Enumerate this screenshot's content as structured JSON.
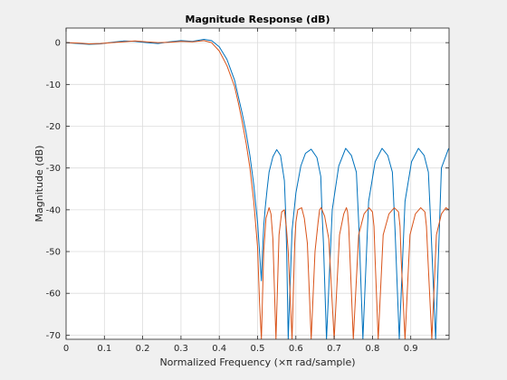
{
  "chart_data": {
    "type": "line",
    "title": "Magnitude Response (dB)",
    "xlabel": "Normalized Frequency (×π rad/sample)",
    "ylabel": "Magnitude (dB)",
    "xlim": [
      0,
      1
    ],
    "ylim": [
      -71,
      3.5
    ],
    "xticks": [
      0,
      0.1,
      0.2,
      0.3,
      0.4,
      0.5,
      0.6,
      0.7,
      0.8,
      0.9
    ],
    "xtick_labels": [
      "0",
      "0.1",
      "0.2",
      "0.3",
      "0.4",
      "0.5",
      "0.6",
      "0.7",
      "0.8",
      "0.9"
    ],
    "yticks": [
      0,
      -10,
      -20,
      -30,
      -40,
      -50,
      -60,
      -70
    ],
    "ytick_labels": [
      "0",
      "-10",
      "-20",
      "-30",
      "-40",
      "-50",
      "-60",
      "-70"
    ],
    "grid": true,
    "series": [
      {
        "color": "#0072bd",
        "x": [
          0,
          0.03,
          0.06,
          0.09,
          0.12,
          0.15,
          0.18,
          0.21,
          0.24,
          0.27,
          0.3,
          0.33,
          0.36,
          0.38,
          0.4,
          0.42,
          0.44,
          0.45,
          0.46,
          0.47,
          0.48,
          0.49,
          0.5,
          0.505,
          0.51,
          0.513,
          0.516,
          0.52,
          0.525,
          0.53,
          0.54,
          0.55,
          0.56,
          0.57,
          0.573,
          0.576,
          0.58,
          0.59,
          0.6,
          0.613,
          0.625,
          0.64,
          0.655,
          0.665,
          0.668,
          0.672,
          0.68,
          0.695,
          0.712,
          0.73,
          0.745,
          0.758,
          0.761,
          0.765,
          0.775,
          0.79,
          0.807,
          0.825,
          0.84,
          0.852,
          0.855,
          0.859,
          0.87,
          0.885,
          0.902,
          0.92,
          0.935,
          0.946,
          0.949,
          0.953,
          0.965,
          0.98,
          0.999
        ],
        "y": [
          0,
          -0.2,
          -0.4,
          -0.3,
          0.1,
          0.4,
          0.3,
          0,
          -0.2,
          0.2,
          0.5,
          0.3,
          0.8,
          0.5,
          -1.0,
          -4.0,
          -9.0,
          -13.0,
          -17.0,
          -21.5,
          -27.0,
          -34.0,
          -43.0,
          -50.0,
          -57.0,
          -50.0,
          -44.0,
          -39.5,
          -35.0,
          -31.0,
          -27.3,
          -25.6,
          -27.0,
          -33.0,
          -40.0,
          -50.0,
          -71.0,
          -45.0,
          -36.0,
          -29.5,
          -26.5,
          -25.5,
          -27.5,
          -32.0,
          -40.0,
          -48.0,
          -71.0,
          -40.0,
          -29.5,
          -25.3,
          -27.0,
          -31.0,
          -37.0,
          -45.0,
          -71.0,
          -38.0,
          -28.5,
          -25.3,
          -27.0,
          -31.0,
          -37.0,
          -45.0,
          -71.0,
          -38.0,
          -28.5,
          -25.3,
          -27.0,
          -31.0,
          -37.0,
          -45.0,
          -71.0,
          -30.0,
          -25.3
        ]
      },
      {
        "color": "#d95319",
        "x": [
          0,
          0.03,
          0.06,
          0.09,
          0.12,
          0.15,
          0.18,
          0.21,
          0.24,
          0.27,
          0.3,
          0.33,
          0.36,
          0.38,
          0.4,
          0.42,
          0.44,
          0.45,
          0.46,
          0.47,
          0.48,
          0.49,
          0.5,
          0.505,
          0.51,
          0.516,
          0.522,
          0.53,
          0.535,
          0.54,
          0.548,
          0.556,
          0.563,
          0.57,
          0.575,
          0.58,
          0.59,
          0.597,
          0.6,
          0.605,
          0.615,
          0.622,
          0.63,
          0.64,
          0.65,
          0.658,
          0.662,
          0.666,
          0.675,
          0.686,
          0.7,
          0.714,
          0.725,
          0.732,
          0.735,
          0.738,
          0.75,
          0.764,
          0.778,
          0.791,
          0.8,
          0.804,
          0.807,
          0.815,
          0.828,
          0.843,
          0.857,
          0.868,
          0.872,
          0.875,
          0.885,
          0.898,
          0.912,
          0.926,
          0.937,
          0.941,
          0.945,
          0.955,
          0.967,
          0.98,
          0.992,
          0.999
        ],
        "y": [
          0,
          -0.1,
          -0.3,
          -0.2,
          0.0,
          0.2,
          0.4,
          0.2,
          0.0,
          0.1,
          0.3,
          0.2,
          0.5,
          0.0,
          -2.0,
          -5.5,
          -10.5,
          -14.5,
          -19.0,
          -24.0,
          -30.0,
          -38.0,
          -49.0,
          -62.0,
          -71.0,
          -50.0,
          -42.0,
          -39.5,
          -41.0,
          -47.0,
          -71.0,
          -46.0,
          -40.5,
          -40.0,
          -44.0,
          -50.0,
          -71.0,
          -48.0,
          -43.0,
          -40.0,
          -39.5,
          -42.0,
          -48.0,
          -71.0,
          -50.0,
          -43.0,
          -40.0,
          -39.5,
          -41.5,
          -47.0,
          -71.0,
          -46.0,
          -41.0,
          -39.5,
          -40.5,
          -44.0,
          -71.0,
          -46.0,
          -41.0,
          -39.5,
          -40.5,
          -44.0,
          -52.0,
          -71.0,
          -46.0,
          -41.0,
          -39.5,
          -40.5,
          -44.0,
          -52.0,
          -71.0,
          -46.0,
          -41.0,
          -39.5,
          -40.5,
          -44.0,
          -52.0,
          -71.0,
          -46.0,
          -41.0,
          -39.5,
          -40.0
        ]
      }
    ]
  }
}
